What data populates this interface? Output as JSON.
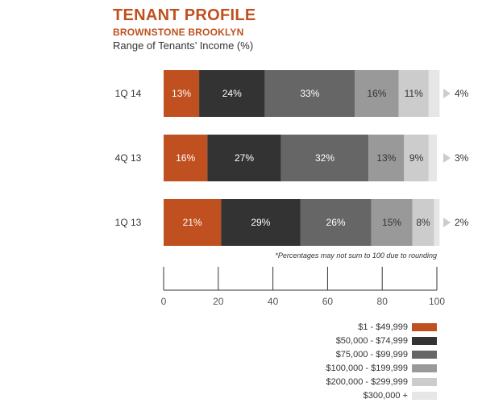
{
  "header": {
    "title": "TENANT PROFILE",
    "subtitle": "BROWNSTONE BROOKLYN",
    "description": "Range of Tenants’ Income (%)"
  },
  "footnote": "*Percentages may not sum to 100 due to rounding",
  "chart_data": {
    "type": "bar",
    "orientation": "horizontal",
    "stacked": true,
    "categories": [
      "1Q 14",
      "4Q 13",
      "1Q 13"
    ],
    "series": [
      {
        "name": "$1 - $49,999",
        "color": "#c0501f",
        "values": [
          13,
          16,
          21
        ]
      },
      {
        "name": "$50,000 - $74,999",
        "color": "#333333",
        "values": [
          24,
          27,
          29
        ]
      },
      {
        "name": "$75,000 - $99,999",
        "color": "#666666",
        "values": [
          33,
          32,
          26
        ]
      },
      {
        "name": "$100,000 - $199,999",
        "color": "#999999",
        "values": [
          16,
          13,
          15
        ]
      },
      {
        "name": "$200,000 - $299,999",
        "color": "#cccccc",
        "values": [
          11,
          9,
          8
        ]
      },
      {
        "name": "$300,000 +",
        "color": "#e6e6e6",
        "values": [
          4,
          3,
          2
        ]
      }
    ],
    "data_labels": [
      [
        "13%",
        "24%",
        "33%",
        "16%",
        "11%",
        "4%"
      ],
      [
        "16%",
        "27%",
        "32%",
        "13%",
        "9%",
        "3%"
      ],
      [
        "21%",
        "29%",
        "26%",
        "15%",
        "8%",
        "2%"
      ]
    ],
    "xlim": [
      0,
      100
    ],
    "xticks": [
      0,
      20,
      40,
      60,
      80,
      100
    ],
    "legend_position": "bottom-right",
    "label_colors": {
      "light": "#ffffff",
      "dark": "#333333"
    }
  }
}
